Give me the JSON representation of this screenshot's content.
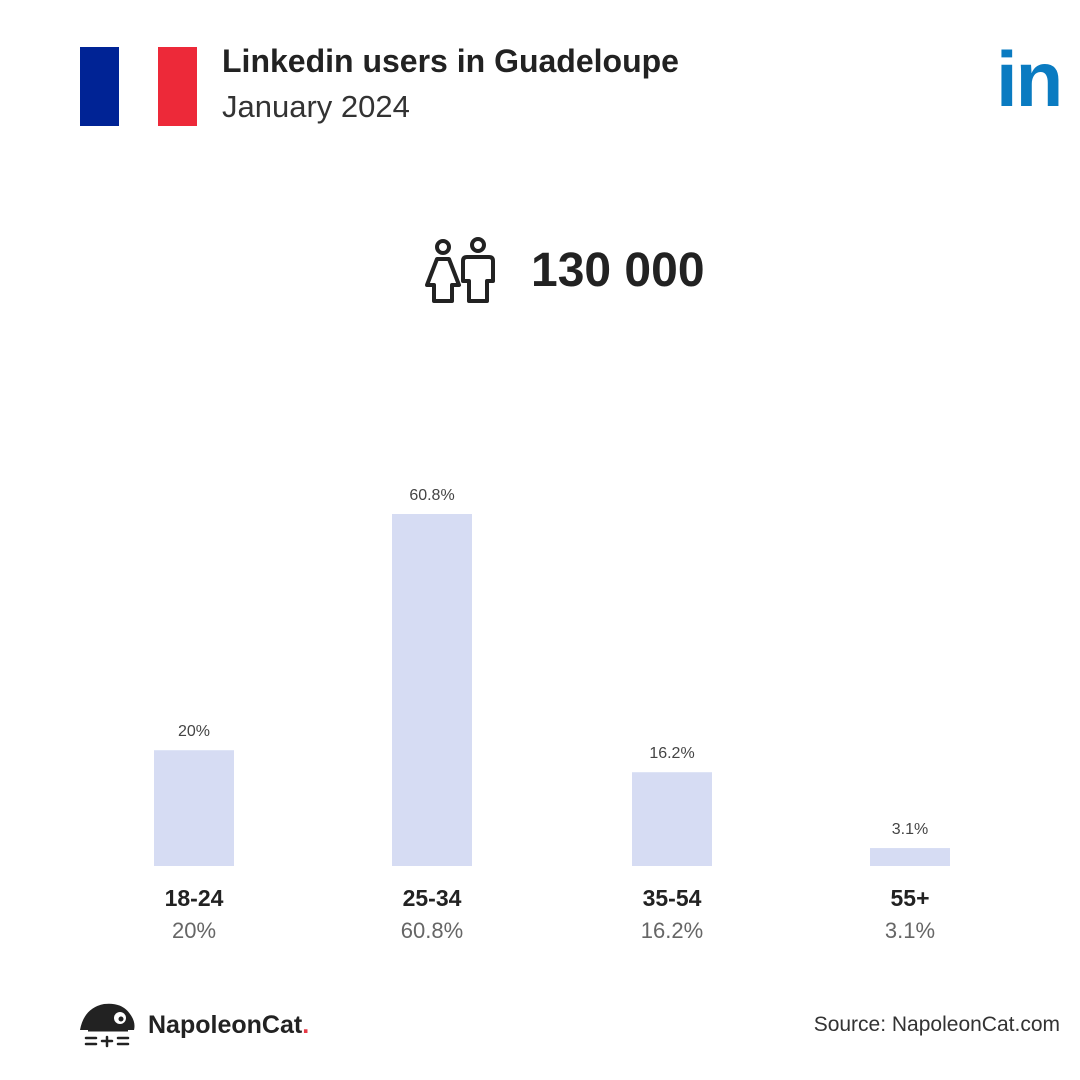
{
  "header": {
    "title": "Linkedin users in Guadeloupe",
    "subtitle": "January 2024",
    "flag_colors": [
      "#002395",
      "#ffffff",
      "#ED2939"
    ],
    "logo_text": "in",
    "logo_color": "#0A7BC1"
  },
  "summary": {
    "icon": "users-icon",
    "total": "130 000"
  },
  "chart_data": {
    "type": "bar",
    "categories": [
      "18-24",
      "25-34",
      "35-54",
      "55+"
    ],
    "values": [
      20,
      60.8,
      16.2,
      3.1
    ],
    "value_labels": [
      "20%",
      "60.8%",
      "16.2%",
      "3.1%"
    ],
    "unit": "%",
    "ylim": [
      0,
      60.8
    ],
    "grid": false,
    "bar_color": "#D6DCF3"
  },
  "footer": {
    "brand_name": "NapoleonCat",
    "brand_dot": ".",
    "source": "Source: NapoleonCat.com"
  }
}
